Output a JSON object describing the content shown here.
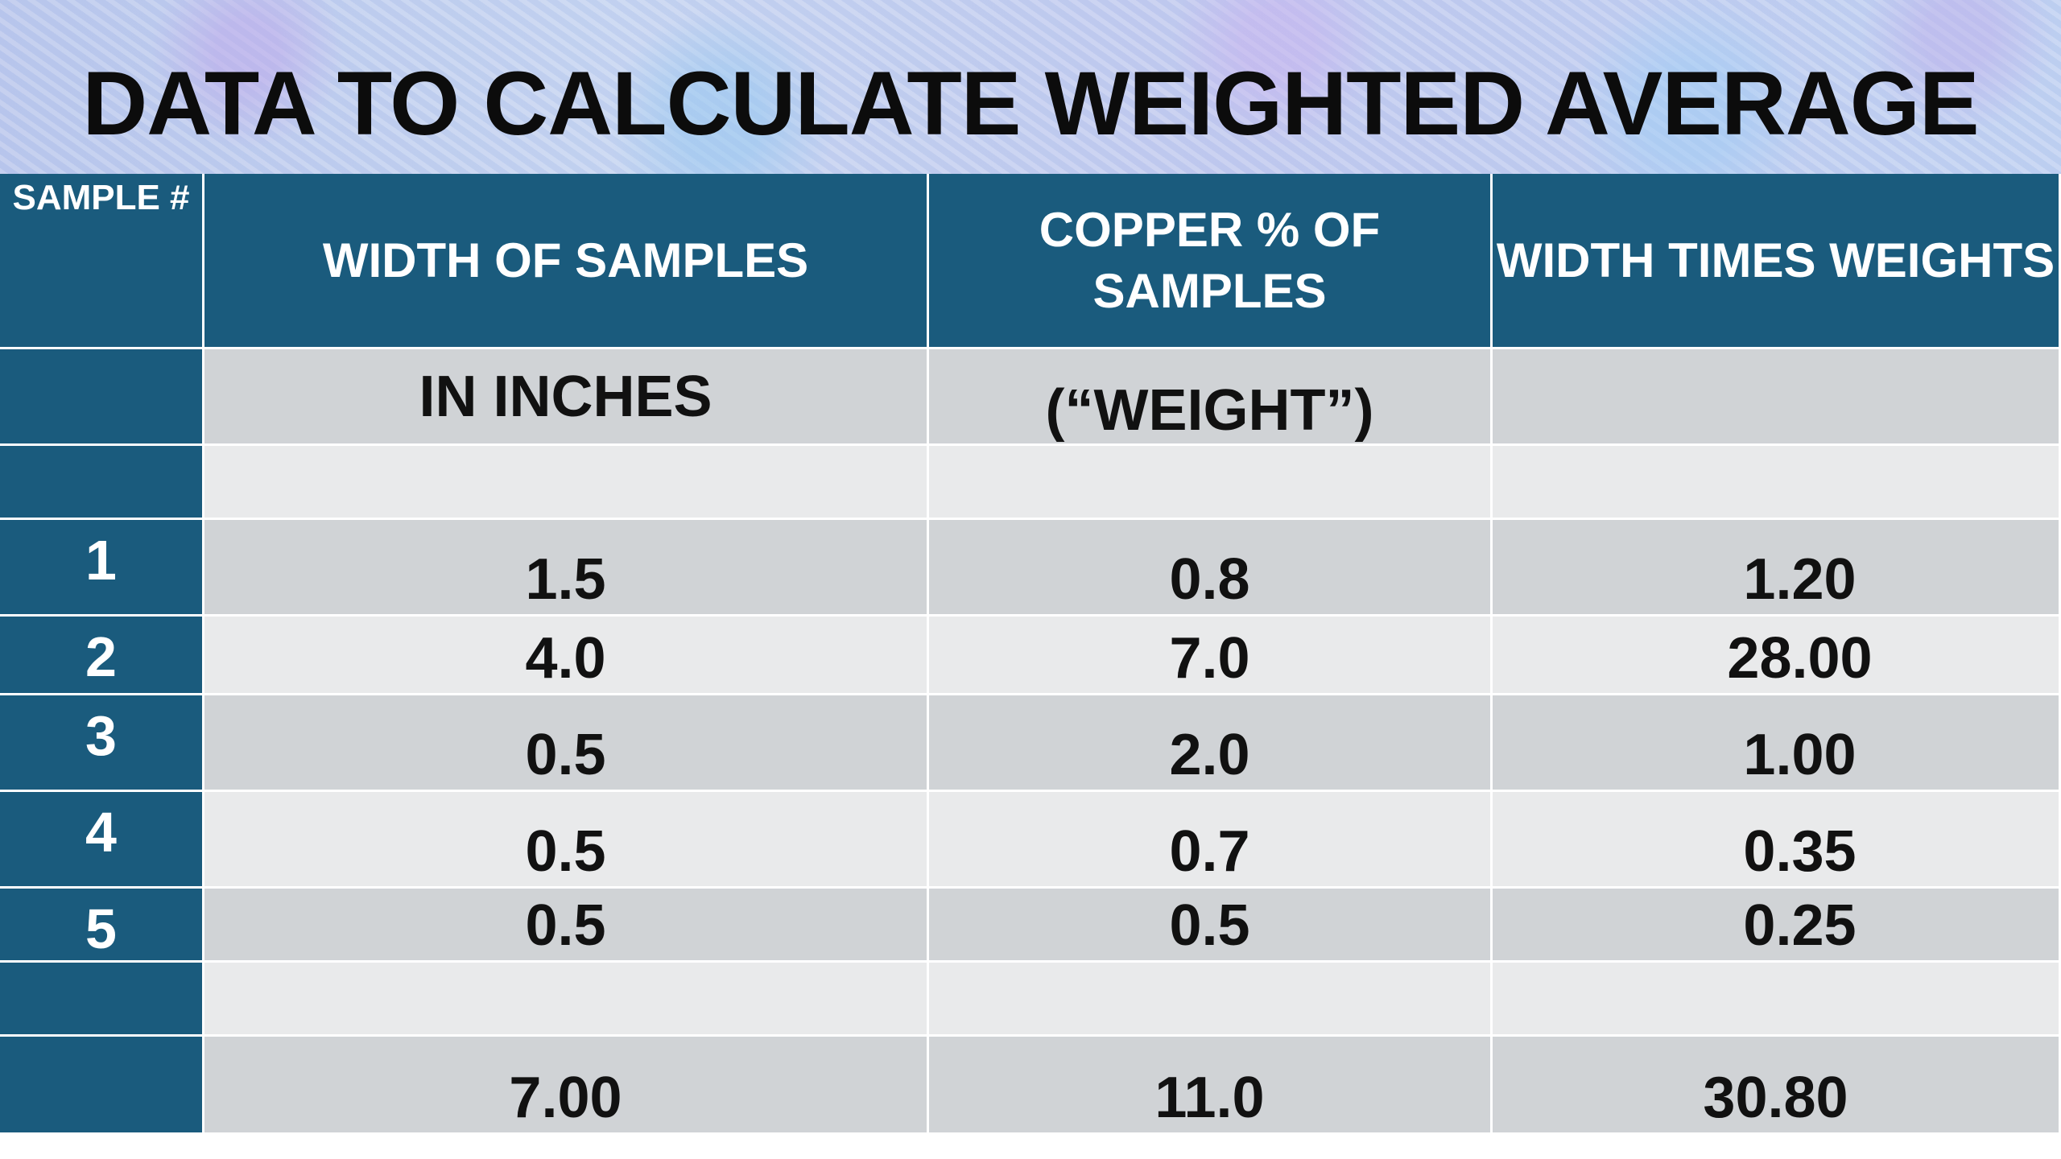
{
  "title": "DATA TO CALCULATE WEIGHTED AVERAGE",
  "headers": {
    "sample": "SAMPLE #",
    "width": "WIDTH OF SAMPLES",
    "copper": "COPPER % OF SAMPLES",
    "product": "WIDTH TIMES WEIGHTS"
  },
  "subheaders": {
    "width": "IN INCHES",
    "copper": "(“WEIGHT”)",
    "product": ""
  },
  "rows": [
    {
      "sample": "1",
      "width": "1.5",
      "copper": "0.8",
      "product": "1.20"
    },
    {
      "sample": "2",
      "width": "4.0",
      "copper": "7.0",
      "product": "28.00"
    },
    {
      "sample": "3",
      "width": "0.5",
      "copper": "2.0",
      "product": "1.00"
    },
    {
      "sample": "4",
      "width": "0.5",
      "copper": "0.7",
      "product": "0.35"
    },
    {
      "sample": "5",
      "width": "0.5",
      "copper": "0.5",
      "product": "0.25"
    }
  ],
  "totals": {
    "width": "7.00",
    "copper": "11.0",
    "product": "30.80"
  },
  "colors": {
    "header_blue": "#1a5b7d",
    "row_dark": "#d0d3d6",
    "row_light": "#e9eaeb"
  }
}
